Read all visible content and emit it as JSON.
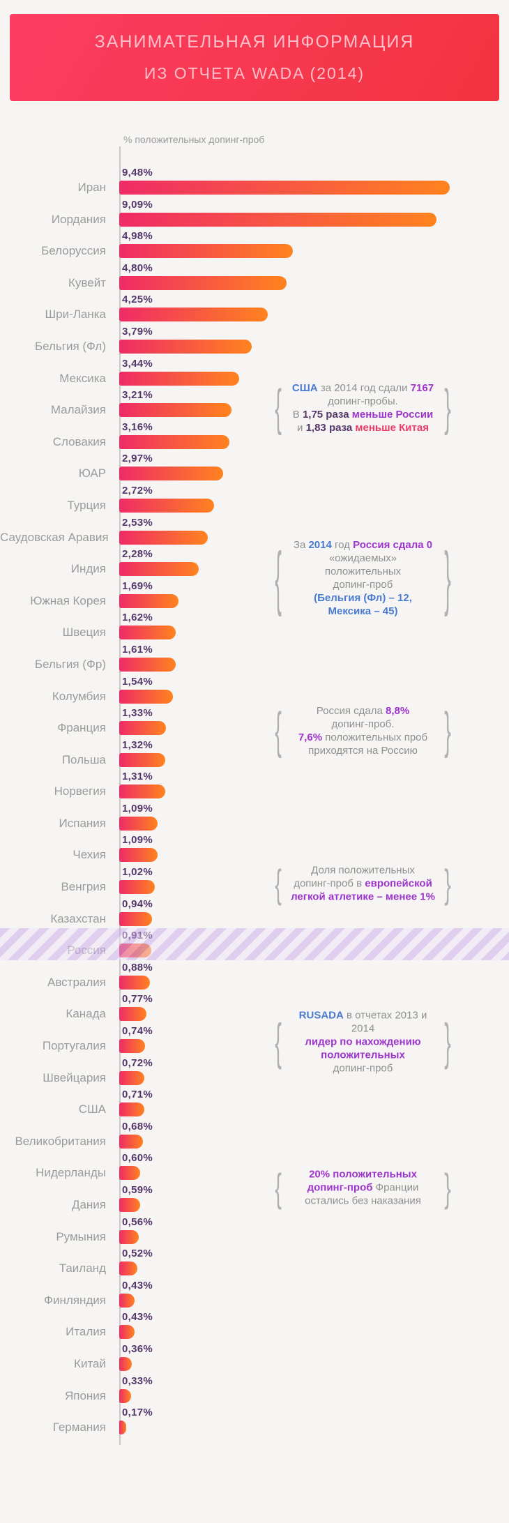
{
  "header": {
    "line1": "ЗАНИМАТЕЛЬНАЯ ИНФОРМАЦИЯ",
    "line2": "ИЗ ОТЧЕТА WADA (2014)"
  },
  "chart_data": {
    "type": "bar",
    "orientation": "horizontal",
    "axis_label": "% положительных допинг-проб",
    "unit": "%",
    "xlim": [
      0,
      9.5
    ],
    "grid": false,
    "highlight_category": "Россия",
    "categories": [
      "Иран",
      "Иордания",
      "Белоруссия",
      "Кувейт",
      "Шри-Ланка",
      "Бельгия (Фл)",
      "Мексика",
      "Малайзия",
      "Словакия",
      "ЮАР",
      "Турция",
      "Саудовская Аравия",
      "Индия",
      "Южная Корея",
      "Швеция",
      "Бельгия (Фр)",
      "Колумбия",
      "Франция",
      "Польша",
      "Норвегия",
      "Испания",
      "Чехия",
      "Венгрия",
      "Казахстан",
      "Россия",
      "Австралия",
      "Канада",
      "Португалия",
      "Швейцария",
      "США",
      "Великобритания",
      "Нидерланды",
      "Дания",
      "Румыния",
      "Таиланд",
      "Финляндия",
      "Италия",
      "Китай",
      "Япония",
      "Германия"
    ],
    "values": [
      9.48,
      9.09,
      4.98,
      4.8,
      4.25,
      3.79,
      3.44,
      3.21,
      3.16,
      2.97,
      2.72,
      2.53,
      2.28,
      1.69,
      1.62,
      1.61,
      1.54,
      1.33,
      1.32,
      1.31,
      1.09,
      1.09,
      1.02,
      0.94,
      0.91,
      0.88,
      0.77,
      0.74,
      0.72,
      0.71,
      0.68,
      0.6,
      0.59,
      0.56,
      0.52,
      0.43,
      0.43,
      0.36,
      0.33,
      0.17
    ],
    "value_labels": [
      "9,48%",
      "9,09%",
      "4,98%",
      "4,80%",
      "4,25%",
      "3,79%",
      "3,44%",
      "3,21%",
      "3,16%",
      "2,97%",
      "2,72%",
      "2,53%",
      "2,28%",
      "1,69%",
      "1,62%",
      "1,61%",
      "1,54%",
      "1,33%",
      "1,32%",
      "1,31%",
      "1,09%",
      "1,09%",
      "1,02%",
      "0,94%",
      "0,91%",
      "0,88%",
      "0,77%",
      "0,74%",
      "0,72%",
      "0,71%",
      "0,68%",
      "0,60%",
      "0,59%",
      "0,56%",
      "0,52%",
      "0,43%",
      "0,43%",
      "0,36%",
      "0,33%",
      "0,17%"
    ]
  },
  "callouts": [
    {
      "lines": [
        [
          {
            "t": "США",
            "c": "b"
          },
          {
            "t": " за 2014 год сдали ",
            "c": "g"
          },
          {
            "t": "7167",
            "c": "p"
          }
        ],
        [
          {
            "t": "допинг-пробы.",
            "c": "g"
          }
        ],
        [
          {
            "t": "В ",
            "c": "g"
          },
          {
            "t": "1,75 раза",
            "c": "d"
          },
          {
            "t": " ",
            "c": "g"
          },
          {
            "t": "меньше России",
            "c": "p"
          }
        ],
        [
          {
            "t": "и ",
            "c": "g"
          },
          {
            "t": "1,83 раза",
            "c": "d"
          },
          {
            "t": " ",
            "c": "g"
          },
          {
            "t": "меньше Китая",
            "c": "r"
          }
        ]
      ]
    },
    {
      "lines": [
        [
          {
            "t": "За ",
            "c": "g"
          },
          {
            "t": "2014",
            "c": "b"
          },
          {
            "t": " год ",
            "c": "g"
          },
          {
            "t": "Россия сдала 0",
            "c": "p"
          }
        ],
        [
          {
            "t": "«ожидаемых»",
            "c": "g"
          }
        ],
        [
          {
            "t": "положительных",
            "c": "g"
          }
        ],
        [
          {
            "t": "допинг-проб",
            "c": "g"
          }
        ],
        [
          {
            "t": "(Бельгия (Фл) – 12,",
            "c": "b"
          }
        ],
        [
          {
            "t": "Мексика – 45)",
            "c": "b"
          }
        ]
      ]
    },
    {
      "lines": [
        [
          {
            "t": "Россия сдала ",
            "c": "g"
          },
          {
            "t": "8,8%",
            "c": "p"
          }
        ],
        [
          {
            "t": "допинг-проб.",
            "c": "g"
          }
        ],
        [
          {
            "t": "7,6%",
            "c": "p"
          },
          {
            "t": " положительных проб",
            "c": "g"
          }
        ],
        [
          {
            "t": "приходятся на Россию",
            "c": "g"
          }
        ]
      ]
    },
    {
      "lines": [
        [
          {
            "t": "Доля положительных",
            "c": "g"
          }
        ],
        [
          {
            "t": "допинг-проб в ",
            "c": "g"
          },
          {
            "t": "европейской",
            "c": "p"
          }
        ],
        [
          {
            "t": "легкой атлетике – менее 1%",
            "c": "p"
          }
        ]
      ]
    },
    {
      "lines": [
        [
          {
            "t": "RUSADA",
            "c": "b"
          },
          {
            "t": " в отчетах 2013 и 2014",
            "c": "g"
          }
        ],
        [
          {
            "t": "лидер по нахождению",
            "c": "p"
          }
        ],
        [
          {
            "t": "положительных",
            "c": "p"
          }
        ],
        [
          {
            "t": "допинг-проб",
            "c": "g"
          }
        ]
      ]
    },
    {
      "lines": [
        [
          {
            "t": "20% положительных",
            "c": "p"
          }
        ],
        [
          {
            "t": "допинг-проб",
            "c": "p"
          },
          {
            "t": " Франции",
            "c": "g"
          }
        ],
        [
          {
            "t": "остались без наказания",
            "c": "g"
          }
        ]
      ]
    }
  ],
  "ui": {
    "brace_left": "{",
    "brace_right": "}"
  },
  "palette": {
    "background": "#f6f5f3",
    "header_gradient_start": "#fb3d63",
    "header_gradient_end": "#f2343f",
    "header_text": "#ffbfca",
    "bar_gradient_start": "#ef2b66",
    "bar_gradient_end": "#ff831f",
    "value_label": "#54366b",
    "country_label": "#9b9b9b",
    "axis": "#c9c9c9",
    "callout_gray": "#8f8f8f",
    "accent_blue": "#4a7bd0",
    "accent_purple": "#9d34cc",
    "accent_pink": "#ee3a67",
    "brace": "#b0b0b0",
    "highlight_stripe_a": "#c9a7e8",
    "highlight_stripe_b": "#ece2f7"
  }
}
